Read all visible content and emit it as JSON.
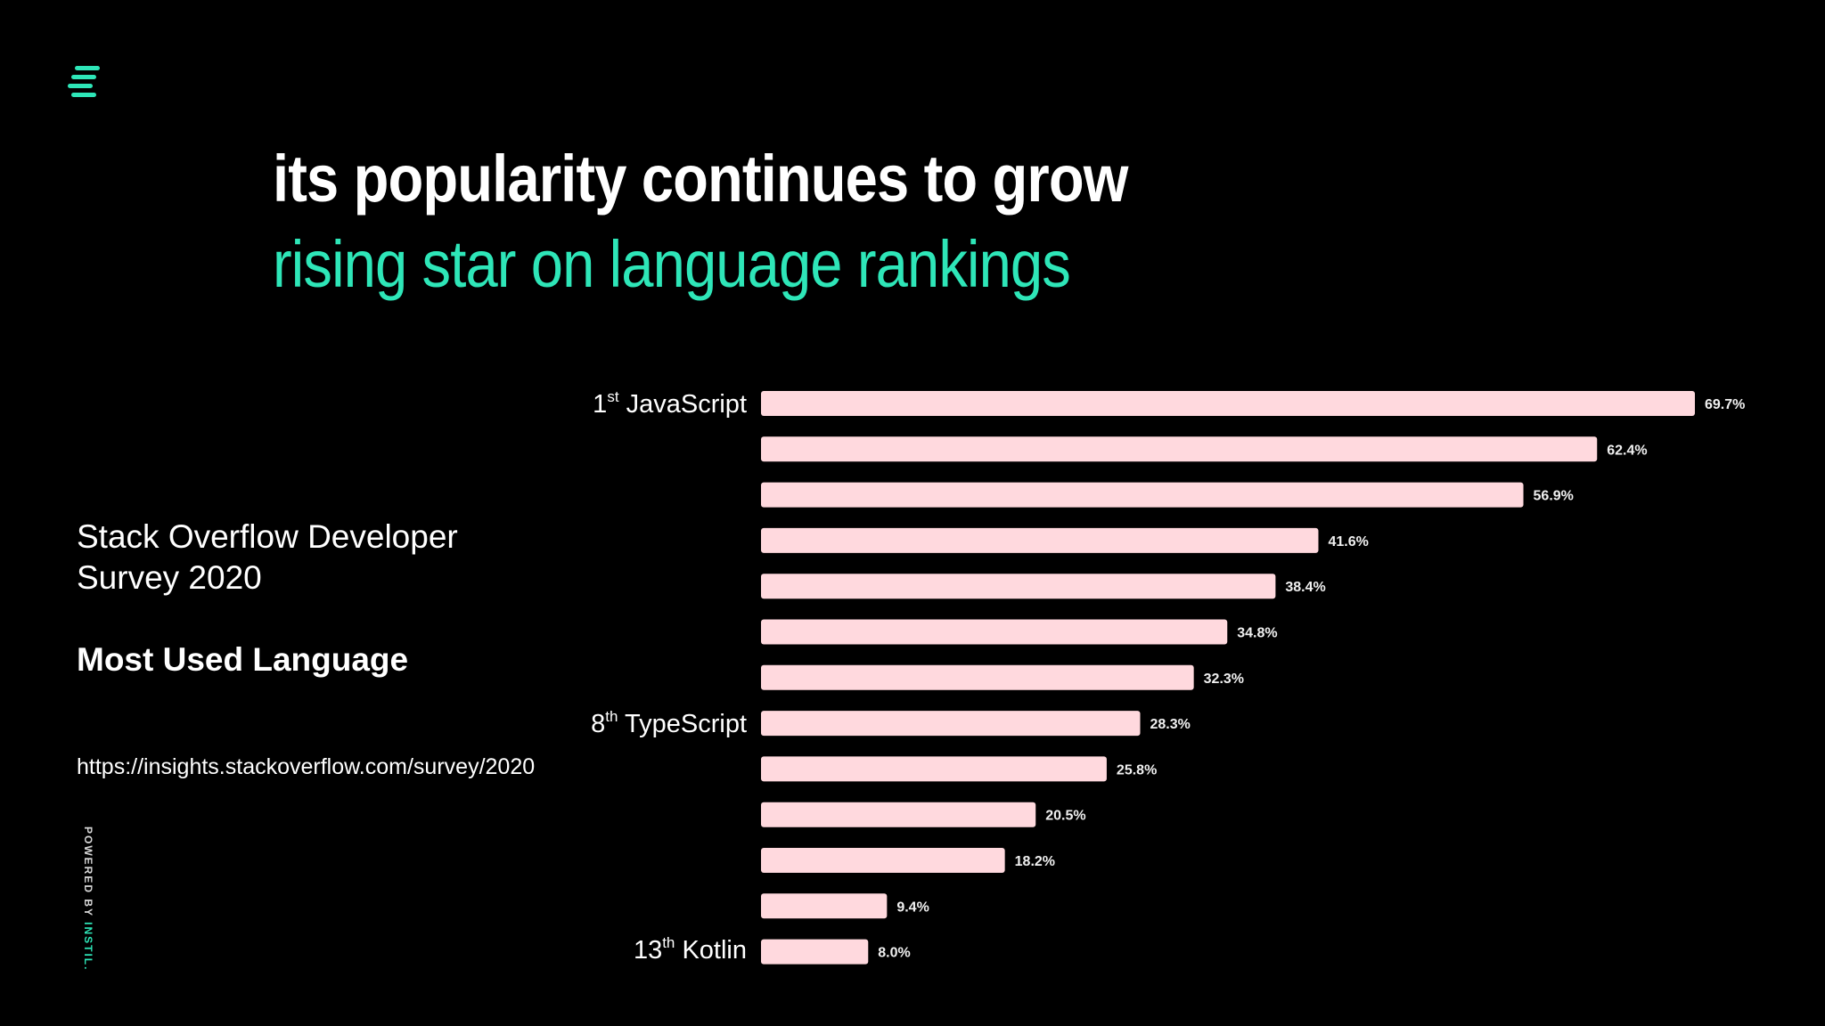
{
  "slide": {
    "title": "its popularity continues to grow",
    "subtitle": "rising star on language rankings",
    "survey": "Stack Overflow Developer Survey 2020",
    "metric": "Most Used Language",
    "url": "https://insights.stackoverflow.com/survey/2020",
    "powered_prefix": "POWERED BY ",
    "powered_brand": "INSTIL.",
    "logo_icon": "instil-logo-icon"
  },
  "colors": {
    "background": "#000000",
    "accent": "#2ee6b8",
    "bar": "#ffd9de",
    "text": "#ffffff"
  },
  "rank_labels": [
    {
      "num": "1",
      "suffix": "st",
      "name": "JavaScript"
    },
    {
      "num": "8",
      "suffix": "th",
      "name": "TypeScript"
    },
    {
      "num": "13",
      "suffix": "th",
      "name": "Kotlin"
    }
  ],
  "chart_data": {
    "type": "bar",
    "orientation": "horizontal",
    "values": [
      69.7,
      62.4,
      56.9,
      41.6,
      38.4,
      34.8,
      32.3,
      28.3,
      25.8,
      20.5,
      18.2,
      9.4,
      8.0
    ],
    "value_labels": [
      "69.7%",
      "62.4%",
      "56.9%",
      "41.6%",
      "38.4%",
      "34.8%",
      "32.3%",
      "28.3%",
      "25.8%",
      "20.5%",
      "18.2%",
      "9.4%",
      "8.0%"
    ],
    "xlim": [
      0,
      69.7
    ],
    "grid": false,
    "legend": "none"
  }
}
